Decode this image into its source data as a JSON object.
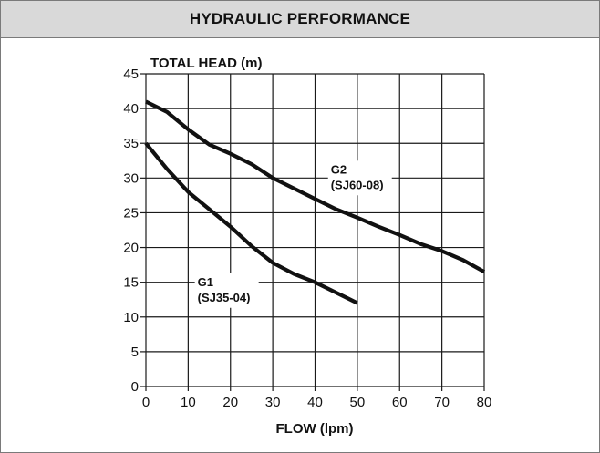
{
  "header": {
    "title": "HYDRAULIC PERFORMANCE"
  },
  "chart_data": {
    "type": "line",
    "title": "HYDRAULIC PERFORMANCE",
    "xlabel": "FLOW (lpm)",
    "ylabel": "TOTAL HEAD (m)",
    "xlim": [
      0,
      80
    ],
    "ylim": [
      0,
      45
    ],
    "xticks": [
      0,
      10,
      20,
      30,
      40,
      50,
      60,
      70,
      80
    ],
    "yticks": [
      0,
      5,
      10,
      15,
      20,
      25,
      30,
      35,
      40,
      45
    ],
    "grid": true,
    "series": [
      {
        "name": "G1",
        "model": "(SJ35-04)",
        "x": [
          0,
          5,
          10,
          15,
          20,
          25,
          30,
          35,
          40,
          45,
          50
        ],
        "y": [
          35,
          31.3,
          28,
          25.5,
          23,
          20.2,
          17.8,
          16.2,
          15,
          13.5,
          12
        ]
      },
      {
        "name": "G2",
        "model": "(SJ60-08)",
        "x": [
          0,
          5,
          10,
          15,
          20,
          25,
          30,
          35,
          40,
          45,
          50,
          55,
          60,
          65,
          70,
          75,
          80
        ],
        "y": [
          41,
          39.5,
          37,
          34.8,
          33.5,
          32,
          30,
          28.5,
          27,
          25.5,
          24.3,
          23,
          21.8,
          20.5,
          19.5,
          18.2,
          16.5
        ]
      }
    ]
  }
}
